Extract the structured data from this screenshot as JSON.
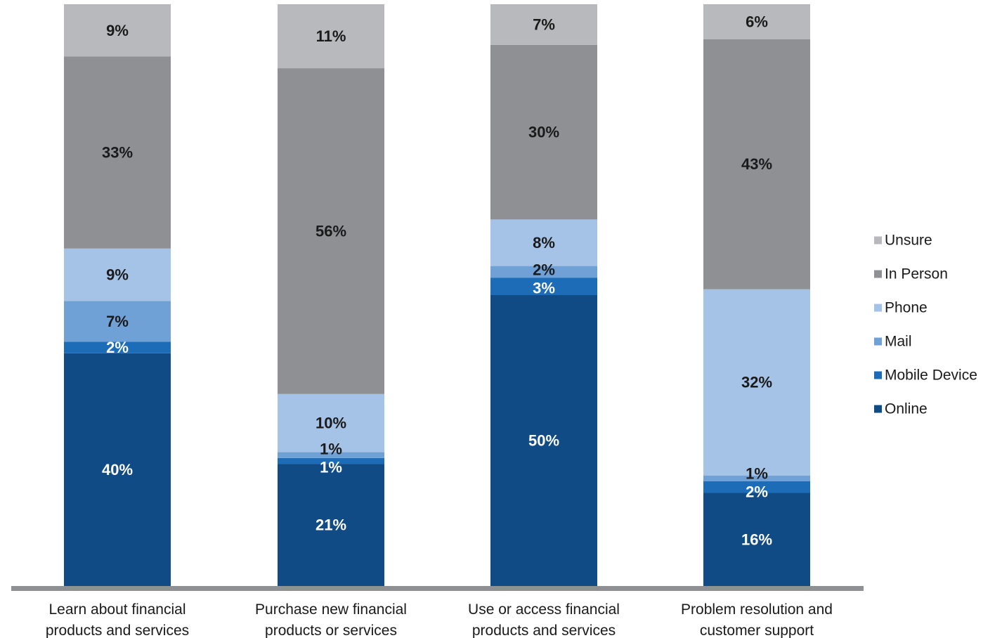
{
  "chart_data": {
    "type": "bar",
    "stacked": true,
    "categories": [
      [
        "Learn about financial",
        "products and services"
      ],
      [
        "Purchase new financial",
        "products or services"
      ],
      [
        "Use or access financial",
        "products and services"
      ],
      [
        "Problem resolution and",
        "customer support"
      ]
    ],
    "series": [
      {
        "name": "Online",
        "color": "#114b85",
        "label_color": "#ffffff",
        "values": [
          40,
          21,
          50,
          16
        ]
      },
      {
        "name": "Mobile Device",
        "color": "#1c6cb8",
        "label_color": "#ffffff",
        "values": [
          2,
          1,
          3,
          2
        ]
      },
      {
        "name": "Mail",
        "color": "#6fa1d6",
        "label_color": "#1a1a1a",
        "values": [
          7,
          1,
          2,
          1
        ]
      },
      {
        "name": "Phone",
        "color": "#a4c3e7",
        "label_color": "#1a1a1a",
        "values": [
          9,
          10,
          8,
          32
        ]
      },
      {
        "name": "In Person",
        "color": "#8e9094",
        "label_color": "#1a1a1a",
        "values": [
          33,
          56,
          30,
          43
        ]
      },
      {
        "name": "Unsure",
        "color": "#b8b9bc",
        "label_color": "#1a1a1a",
        "values": [
          9,
          11,
          7,
          6
        ]
      }
    ],
    "value_suffix": "%",
    "legend_order": [
      "Unsure",
      "In Person",
      "Phone",
      "Mail",
      "Mobile Device",
      "Online"
    ],
    "legend_position": "right",
    "grid": false,
    "baseline_color": "#8e9094"
  }
}
